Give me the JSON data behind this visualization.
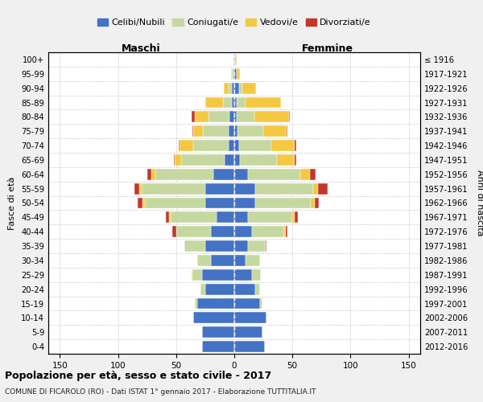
{
  "age_groups": [
    "0-4",
    "5-9",
    "10-14",
    "15-19",
    "20-24",
    "25-29",
    "30-34",
    "35-39",
    "40-44",
    "45-49",
    "50-54",
    "55-59",
    "60-64",
    "65-69",
    "70-74",
    "75-79",
    "80-84",
    "85-89",
    "90-94",
    "95-99",
    "100+"
  ],
  "birth_years": [
    "2012-2016",
    "2007-2011",
    "2002-2006",
    "1997-2001",
    "1992-1996",
    "1987-1991",
    "1982-1986",
    "1977-1981",
    "1972-1976",
    "1967-1971",
    "1962-1966",
    "1957-1961",
    "1952-1956",
    "1947-1951",
    "1942-1946",
    "1937-1941",
    "1932-1936",
    "1927-1931",
    "1922-1926",
    "1917-1921",
    "≤ 1916"
  ],
  "males_celibe": [
    28,
    28,
    35,
    32,
    25,
    28,
    20,
    25,
    20,
    15,
    25,
    25,
    18,
    8,
    5,
    5,
    4,
    2,
    2,
    1,
    1
  ],
  "males_coniugato": [
    0,
    0,
    0,
    2,
    4,
    8,
    12,
    18,
    30,
    40,
    52,
    55,
    50,
    38,
    30,
    22,
    18,
    8,
    3,
    1,
    0
  ],
  "males_vedovo": [
    0,
    0,
    0,
    0,
    0,
    1,
    0,
    0,
    0,
    1,
    2,
    2,
    3,
    5,
    12,
    8,
    12,
    15,
    4,
    1,
    0
  ],
  "males_divorziato": [
    0,
    0,
    0,
    0,
    0,
    0,
    0,
    0,
    3,
    3,
    4,
    4,
    4,
    1,
    1,
    1,
    3,
    0,
    0,
    0,
    0
  ],
  "females_celibe": [
    26,
    24,
    28,
    22,
    18,
    15,
    10,
    12,
    15,
    12,
    18,
    18,
    12,
    5,
    4,
    3,
    2,
    2,
    4,
    2,
    1
  ],
  "females_coniugato": [
    0,
    0,
    0,
    2,
    4,
    8,
    12,
    15,
    28,
    38,
    48,
    50,
    45,
    32,
    28,
    22,
    15,
    8,
    3,
    0,
    0
  ],
  "females_vedovo": [
    0,
    0,
    0,
    0,
    0,
    0,
    0,
    0,
    1,
    2,
    3,
    4,
    8,
    15,
    20,
    20,
    30,
    30,
    12,
    3,
    1
  ],
  "females_divorziato": [
    0,
    0,
    0,
    0,
    0,
    0,
    0,
    1,
    2,
    3,
    4,
    8,
    5,
    1,
    1,
    1,
    1,
    0,
    0,
    0,
    0
  ],
  "colors": {
    "celibe": "#4472c4",
    "coniugato": "#c5d8a0",
    "vedovo": "#f5c842",
    "divorziato": "#c0392b"
  },
  "legend_labels": [
    "Celibi/Nubili",
    "Coniugati/e",
    "Vedovi/e",
    "Divorziati/e"
  ],
  "header_left": "Maschi",
  "header_right": "Femmine",
  "ylabel_left": "Fasce di età",
  "ylabel_right": "Anni di nascita",
  "title": "Popolazione per età, sesso e stato civile - 2017",
  "subtitle": "COMUNE DI FICAROLO (RO) - Dati ISTAT 1° gennaio 2017 - Elaborazione TUTTITALIA.IT",
  "xlim": 160,
  "bg_color": "#f0f0f0",
  "plot_bg": "#ffffff"
}
